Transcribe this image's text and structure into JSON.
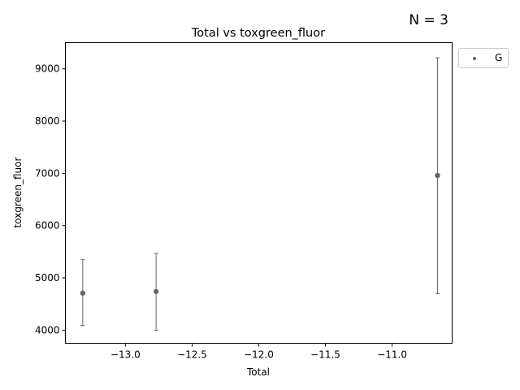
{
  "n_label": "N = 3",
  "chart_data": {
    "type": "scatter",
    "title": "Total vs toxgreen_fluor",
    "xlabel": "Total",
    "ylabel": "toxgreen_fluor",
    "xlim": [
      -13.45,
      -10.55
    ],
    "ylim": [
      3750,
      9500
    ],
    "xticks": [
      -13.0,
      -12.5,
      -12.0,
      -11.5,
      -11.0
    ],
    "xtick_labels": [
      "−13.0",
      "−12.5",
      "−12.0",
      "−11.5",
      "−11.0"
    ],
    "yticks": [
      4000,
      5000,
      6000,
      7000,
      8000,
      9000
    ],
    "ytick_labels": [
      "4000",
      "5000",
      "6000",
      "7000",
      "8000",
      "9000"
    ],
    "grid": false,
    "legend_placement": "outside-top-right",
    "series": [
      {
        "name": "G",
        "color": "#666666",
        "points": [
          {
            "x": -13.32,
            "y": 4710,
            "ylow": 4090,
            "yhigh": 5350
          },
          {
            "x": -12.77,
            "y": 4740,
            "ylow": 4000,
            "yhigh": 5470
          },
          {
            "x": -10.66,
            "y": 6960,
            "ylow": 4700,
            "yhigh": 9210
          }
        ]
      }
    ]
  }
}
